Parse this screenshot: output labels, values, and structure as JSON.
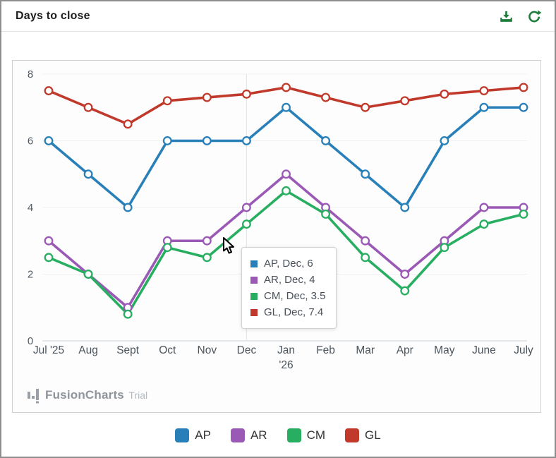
{
  "header": {
    "title": "Days to close",
    "download_icon": "download-icon",
    "refresh_icon": "refresh-icon",
    "icon_color": "#1e7d3b"
  },
  "chart_data": {
    "type": "line",
    "title": "Days to close",
    "categories": [
      "Jul '25",
      "Aug",
      "Sept",
      "Oct",
      "Nov",
      "Dec",
      "Jan|'26",
      "Feb",
      "Mar",
      "Apr",
      "May",
      "June",
      "July"
    ],
    "series": [
      {
        "name": "AP",
        "color": "#2980b9",
        "values": [
          6,
          5,
          4,
          6,
          6,
          6,
          7,
          6,
          5,
          4,
          6,
          7,
          7
        ]
      },
      {
        "name": "AR",
        "color": "#9b59b6",
        "values": [
          3,
          2,
          1,
          3,
          3,
          4,
          5,
          4,
          3,
          2,
          3,
          4,
          4
        ]
      },
      {
        "name": "CM",
        "color": "#27ae60",
        "values": [
          2.5,
          2,
          0.8,
          2.8,
          2.5,
          3.5,
          4.5,
          3.8,
          2.5,
          1.5,
          2.8,
          3.5,
          3.8
        ]
      },
      {
        "name": "GL",
        "color": "#c0392b",
        "values": [
          7.5,
          7,
          6.5,
          7.2,
          7.3,
          7.4,
          7.6,
          7.3,
          7,
          7.2,
          7.4,
          7.5,
          7.6
        ]
      }
    ],
    "ylim": [
      0,
      8
    ],
    "yticks": [
      0,
      2,
      4,
      6,
      8
    ],
    "grid": true,
    "legend_position": "bottom",
    "hover_category_index": 5
  },
  "tooltip": {
    "rows": [
      {
        "series": "AP",
        "color": "#2980b9",
        "text": "AP, Dec, 6"
      },
      {
        "series": "AR",
        "color": "#9b59b6",
        "text": "AR, Dec, 4"
      },
      {
        "series": "CM",
        "color": "#27ae60",
        "text": "CM, Dec, 3.5"
      },
      {
        "series": "GL",
        "color": "#c0392b",
        "text": "GL, Dec, 7.4"
      }
    ]
  },
  "watermark": {
    "brand": "FusionCharts",
    "suffix": "Trial"
  }
}
